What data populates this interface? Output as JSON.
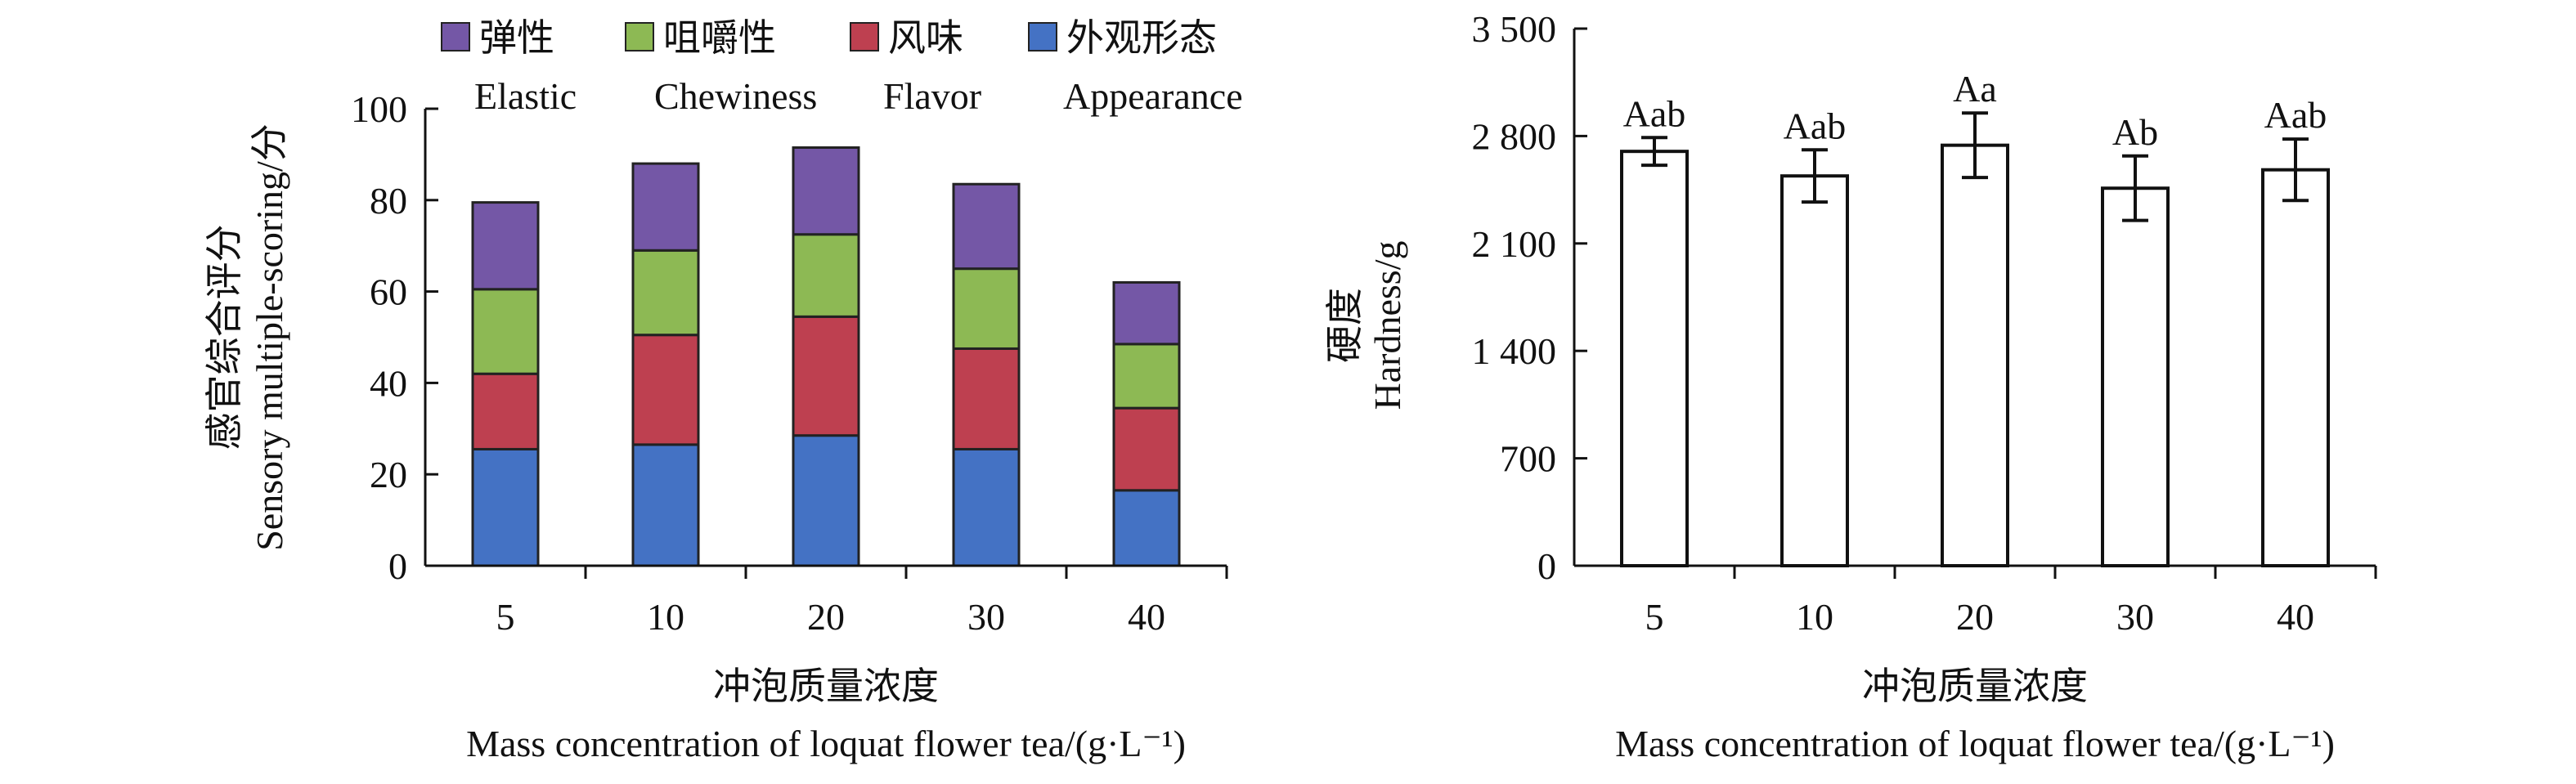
{
  "chart_data": [
    {
      "type": "bar",
      "stacked": true,
      "categories": [
        "5",
        "10",
        "20",
        "30",
        "40"
      ],
      "series": [
        {
          "name_cn": "外观形态",
          "name_en": "Appearance",
          "color": "#4472C4",
          "values": [
            25.5,
            26.5,
            28.5,
            25.5,
            16.5
          ]
        },
        {
          "name_cn": "风味",
          "name_en": "Flavor",
          "color": "#BE4050",
          "values": [
            16.5,
            24.0,
            26.0,
            22.0,
            18.0
          ]
        },
        {
          "name_cn": "咀嚼性",
          "name_en": "Chewiness",
          "color": "#8DB954",
          "values": [
            18.5,
            18.5,
            18.0,
            17.5,
            14.0
          ]
        },
        {
          "name_cn": "弹性",
          "name_en": "Elastic",
          "color": "#7457A6",
          "values": [
            19.0,
            19.0,
            19.0,
            18.5,
            13.5
          ]
        }
      ],
      "legend_order": [
        3,
        2,
        1,
        0
      ],
      "ylabel_cn": "感官综合评分",
      "ylabel_en": "Sensory multiple-scoring/分",
      "xlabel_cn": "冲泡质量浓度",
      "xlabel_en": "Mass concentration of loquat flower tea/(g·L⁻¹)",
      "ylim": [
        0,
        100
      ],
      "yticks": [
        0,
        20,
        40,
        60,
        80,
        100
      ],
      "ytick_labels": [
        "0",
        "20",
        "40",
        "60",
        "80",
        "100"
      ],
      "grid": false,
      "legend_position": "top"
    },
    {
      "type": "bar",
      "categories": [
        "5",
        "10",
        "20",
        "30",
        "40"
      ],
      "values": [
        2700,
        2540,
        2740,
        2460,
        2580
      ],
      "errors": [
        90,
        170,
        210,
        210,
        200
      ],
      "labels": [
        "Aab",
        "Aab",
        "Aa",
        "Ab",
        "Aab"
      ],
      "ylabel_cn": "硬度",
      "ylabel_en": "Hardness/g",
      "xlabel_cn": "冲泡质量浓度",
      "xlabel_en": "Mass concentration of loquat flower tea/(g·L⁻¹)",
      "ylim": [
        0,
        3500
      ],
      "yticks": [
        0,
        700,
        1400,
        2100,
        2800,
        3500
      ],
      "ytick_labels": [
        "0",
        "700",
        "1 400",
        "2 100",
        "2 800",
        "3 500"
      ],
      "bar_fill": "#ffffff",
      "grid": false
    }
  ]
}
